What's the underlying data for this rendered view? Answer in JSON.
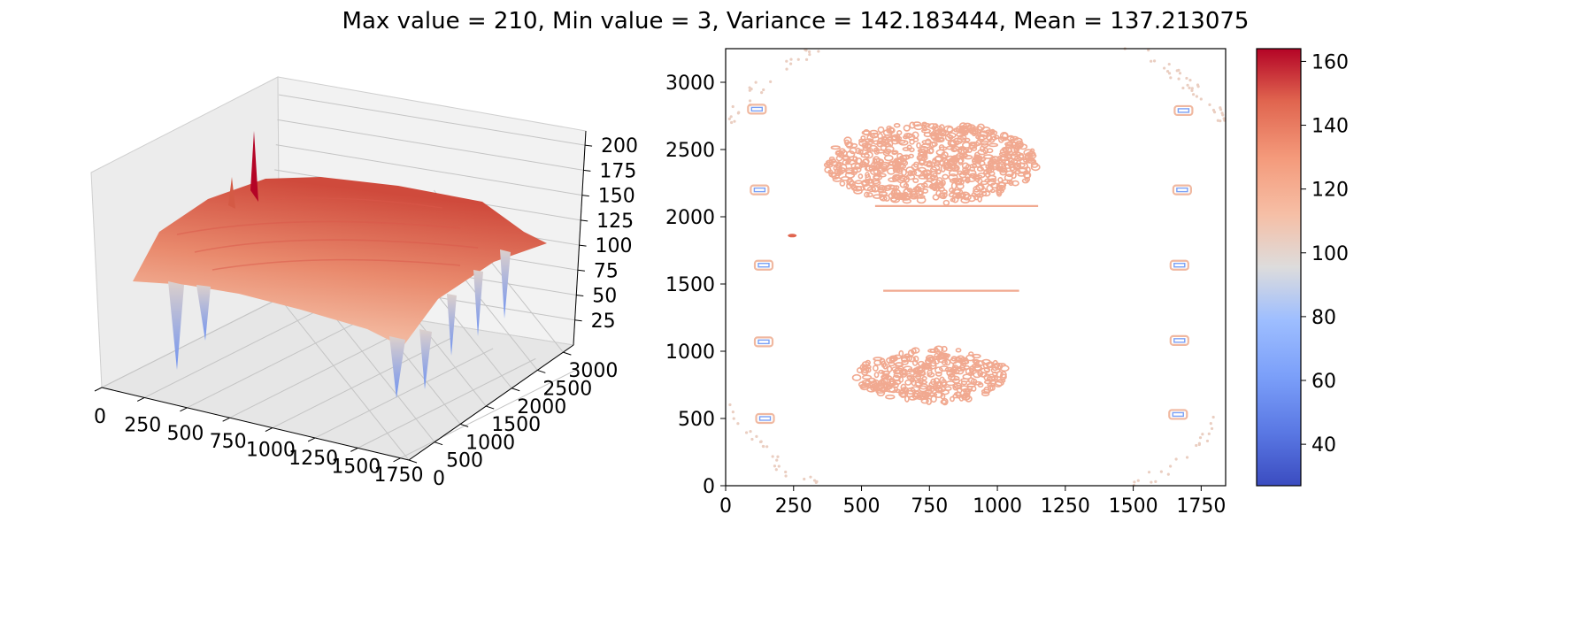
{
  "title": "Max value = 210, Min value = 3, Variance = 142.183444, Mean = 137.213075",
  "chart_data": [
    {
      "type": "surface",
      "colormap": "coolwarm",
      "x_ticks": [
        "0",
        "250",
        "500",
        "750",
        "1000",
        "1250",
        "1500",
        "1750"
      ],
      "y_ticks": [
        "0",
        "500",
        "1000",
        "1500",
        "2000",
        "2500",
        "3000"
      ],
      "z_ticks": [
        "25",
        "50",
        "75",
        "100",
        "125",
        "150",
        "175",
        "200"
      ],
      "xlim": [
        0,
        1799
      ],
      "ylim": [
        0,
        3200
      ],
      "zlim": [
        0,
        210
      ],
      "surface_level_approx": 140,
      "spikes_up": [
        {
          "x": 1080,
          "y": 3000,
          "z": 210
        },
        {
          "x": 880,
          "y": 3050,
          "z": 165
        }
      ],
      "dips_down": [
        {
          "x": 130,
          "y": 500,
          "z": 25
        },
        {
          "x": 130,
          "y": 1070,
          "z": 30
        },
        {
          "x": 140,
          "y": 1630,
          "z": 40
        },
        {
          "x": 1660,
          "y": 520,
          "z": 25
        },
        {
          "x": 1670,
          "y": 1080,
          "z": 30
        },
        {
          "x": 1680,
          "y": 1630,
          "z": 40
        },
        {
          "x": 1680,
          "y": 2200,
          "z": 60
        },
        {
          "x": 1690,
          "y": 2790,
          "z": 70
        }
      ],
      "grid": true
    },
    {
      "type": "contour",
      "colormap": "coolwarm",
      "x_ticks": [
        "0",
        "250",
        "500",
        "750",
        "1000",
        "1250",
        "1500",
        "1750"
      ],
      "y_ticks": [
        "0",
        "500",
        "1000",
        "1500",
        "2000",
        "2500",
        "3000"
      ],
      "xlim": [
        0,
        1840
      ],
      "ylim": [
        0,
        3250
      ],
      "blobs": [
        {
          "cx": 760,
          "cy": 2400,
          "rx": 390,
          "ry": 300,
          "level": 125
        },
        {
          "cx": 760,
          "cy": 820,
          "rx": 280,
          "ry": 200,
          "level": 125
        }
      ],
      "line_segments": [
        {
          "x0": 550,
          "x1": 1150,
          "y": 2080,
          "level": 125
        },
        {
          "x0": 580,
          "x1": 1080,
          "y": 1450,
          "level": 125
        }
      ],
      "markers": [
        {
          "x": 115,
          "y": 2800
        },
        {
          "x": 125,
          "y": 2200
        },
        {
          "x": 140,
          "y": 1640
        },
        {
          "x": 140,
          "y": 1070
        },
        {
          "x": 145,
          "y": 500
        },
        {
          "x": 1685,
          "y": 2790
        },
        {
          "x": 1680,
          "y": 2200
        },
        {
          "x": 1670,
          "y": 1640
        },
        {
          "x": 1670,
          "y": 1080
        },
        {
          "x": 1665,
          "y": 530
        }
      ],
      "small_marks": [
        {
          "x": 245,
          "y": 1860,
          "level": 140
        }
      ],
      "outer_ring_level": 110
    }
  ],
  "colorbar": {
    "ticks": [
      "40",
      "60",
      "80",
      "100",
      "120",
      "140",
      "160"
    ],
    "tick_values": [
      40,
      60,
      80,
      100,
      120,
      140,
      160
    ],
    "range": [
      27,
      164
    ],
    "colormap": "coolwarm"
  }
}
